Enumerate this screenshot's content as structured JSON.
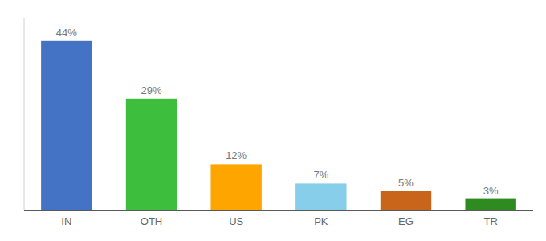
{
  "chart_data": {
    "type": "bar",
    "categories": [
      "IN",
      "OTH",
      "US",
      "PK",
      "EG",
      "TR"
    ],
    "values": [
      44,
      29,
      12,
      7,
      5,
      3
    ],
    "value_labels": [
      "44%",
      "29%",
      "12%",
      "7%",
      "5%",
      "3%"
    ],
    "colors": [
      "#4472C4",
      "#3DBF3D",
      "#FFA500",
      "#87CEEB",
      "#C8651B",
      "#2E8B20"
    ],
    "ylim": [
      0,
      50
    ],
    "grid": false,
    "data_labels": true,
    "tick_labels": "x"
  }
}
